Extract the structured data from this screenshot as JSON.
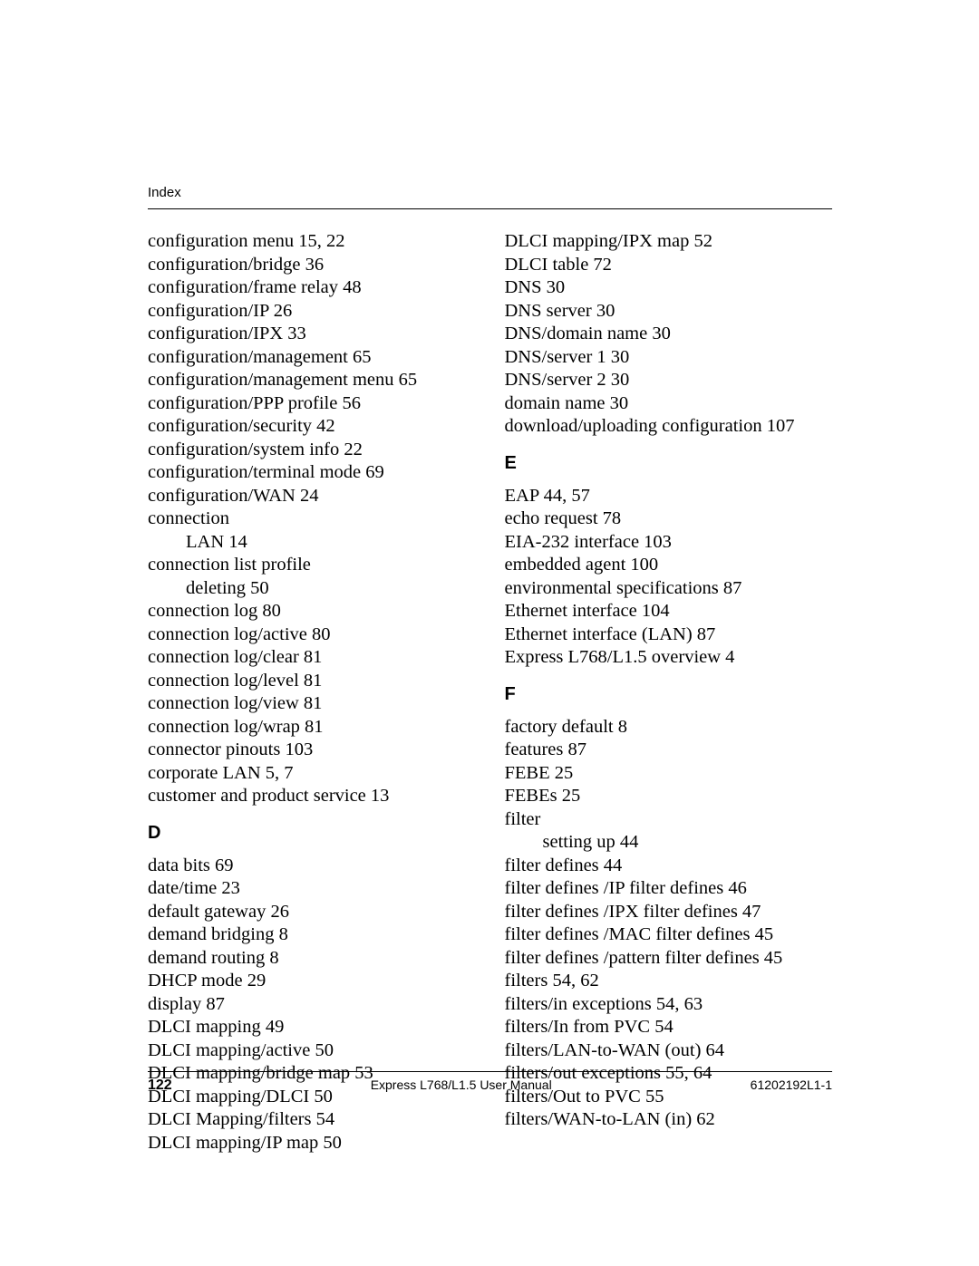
{
  "header": {
    "section": "Index"
  },
  "footer": {
    "page": "122",
    "center": "Express L768/L1.5 User Manual",
    "right": "61202192L1-1"
  },
  "col1": [
    {
      "t": "entry",
      "text": "configuration menu 15, 22"
    },
    {
      "t": "entry",
      "text": "configuration/bridge 36"
    },
    {
      "t": "entry",
      "text": "configuration/frame relay 48"
    },
    {
      "t": "entry",
      "text": "configuration/IP 26"
    },
    {
      "t": "entry",
      "text": "configuration/IPX 33"
    },
    {
      "t": "entry",
      "text": "configuration/management 65"
    },
    {
      "t": "entry",
      "text": "configuration/management menu 65"
    },
    {
      "t": "entry",
      "text": "configuration/PPP profile 56"
    },
    {
      "t": "entry",
      "text": "configuration/security 42"
    },
    {
      "t": "entry",
      "text": "configuration/system info 22"
    },
    {
      "t": "entry",
      "text": "configuration/terminal mode 69"
    },
    {
      "t": "entry",
      "text": "configuration/WAN 24"
    },
    {
      "t": "entry",
      "text": "connection"
    },
    {
      "t": "sub",
      "text": "LAN 14"
    },
    {
      "t": "entry",
      "text": "connection list profile"
    },
    {
      "t": "sub",
      "text": "deleting 50"
    },
    {
      "t": "entry",
      "text": "connection log 80"
    },
    {
      "t": "entry",
      "text": "connection log/active 80"
    },
    {
      "t": "entry",
      "text": "connection log/clear 81"
    },
    {
      "t": "entry",
      "text": "connection log/level 81"
    },
    {
      "t": "entry",
      "text": "connection log/view 81"
    },
    {
      "t": "entry",
      "text": "connection log/wrap 81"
    },
    {
      "t": "entry",
      "text": "connector pinouts 103"
    },
    {
      "t": "entry",
      "text": "corporate LAN 5, 7"
    },
    {
      "t": "entry",
      "text": "customer and product service 13"
    },
    {
      "t": "letter",
      "text": "D"
    },
    {
      "t": "entry",
      "text": "data bits 69"
    },
    {
      "t": "entry",
      "text": "date/time 23"
    },
    {
      "t": "entry",
      "text": "default gateway 26"
    },
    {
      "t": "entry",
      "text": "demand bridging 8"
    },
    {
      "t": "entry",
      "text": "demand routing 8"
    },
    {
      "t": "entry",
      "text": "DHCP mode 29"
    },
    {
      "t": "entry",
      "text": "display 87"
    },
    {
      "t": "entry",
      "text": "DLCI mapping 49"
    },
    {
      "t": "entry",
      "text": "DLCI mapping/active 50"
    },
    {
      "t": "entry",
      "text": "DLCI mapping/bridge map 53"
    },
    {
      "t": "entry",
      "text": "DLCI mapping/DLCI 50"
    },
    {
      "t": "entry",
      "text": "DLCI Mapping/filters 54"
    },
    {
      "t": "entry",
      "text": "DLCI mapping/IP map 50"
    }
  ],
  "col2": [
    {
      "t": "entry",
      "text": "DLCI mapping/IPX map 52"
    },
    {
      "t": "entry",
      "text": "DLCI table 72"
    },
    {
      "t": "entry",
      "text": "DNS 30"
    },
    {
      "t": "entry",
      "text": "DNS server 30"
    },
    {
      "t": "entry",
      "text": "DNS/domain name 30"
    },
    {
      "t": "entry",
      "text": "DNS/server 1 30"
    },
    {
      "t": "entry",
      "text": "DNS/server 2 30"
    },
    {
      "t": "entry",
      "text": "domain name 30"
    },
    {
      "t": "entry",
      "text": "download/uploading configuration 107"
    },
    {
      "t": "letter",
      "text": "E"
    },
    {
      "t": "entry",
      "text": "EAP 44, 57"
    },
    {
      "t": "entry",
      "text": "echo request 78"
    },
    {
      "t": "entry",
      "text": "EIA-232 interface 103"
    },
    {
      "t": "entry",
      "text": "embedded agent 100"
    },
    {
      "t": "entry",
      "text": "environmental specifications 87"
    },
    {
      "t": "entry",
      "text": "Ethernet interface 104"
    },
    {
      "t": "entry",
      "text": "Ethernet interface (LAN) 87"
    },
    {
      "t": "entry",
      "text": "Express L768/L1.5 overview 4"
    },
    {
      "t": "letter",
      "text": "F"
    },
    {
      "t": "entry",
      "text": "factory default 8"
    },
    {
      "t": "entry",
      "text": "features 87"
    },
    {
      "t": "entry",
      "text": "FEBE 25"
    },
    {
      "t": "entry",
      "text": "FEBEs 25"
    },
    {
      "t": "entry",
      "text": "filter"
    },
    {
      "t": "sub",
      "text": "setting up 44"
    },
    {
      "t": "entry",
      "text": "filter defines 44"
    },
    {
      "t": "entry",
      "text": "filter defines /IP filter defines 46"
    },
    {
      "t": "entry",
      "text": "filter defines /IPX filter defines 47"
    },
    {
      "t": "entry",
      "text": "filter defines /MAC filter defines 45"
    },
    {
      "t": "entry",
      "text": "filter defines /pattern filter defines 45"
    },
    {
      "t": "entry",
      "text": "filters 54, 62"
    },
    {
      "t": "entry",
      "text": "filters/in exceptions 54, 63"
    },
    {
      "t": "entry",
      "text": "filters/In from PVC 54"
    },
    {
      "t": "entry",
      "text": "filters/LAN-to-WAN (out) 64"
    },
    {
      "t": "entry",
      "text": "filters/out exceptions 55, 64"
    },
    {
      "t": "entry",
      "text": "filters/Out to PVC 55"
    },
    {
      "t": "entry",
      "text": "filters/WAN-to-LAN (in) 62"
    }
  ]
}
